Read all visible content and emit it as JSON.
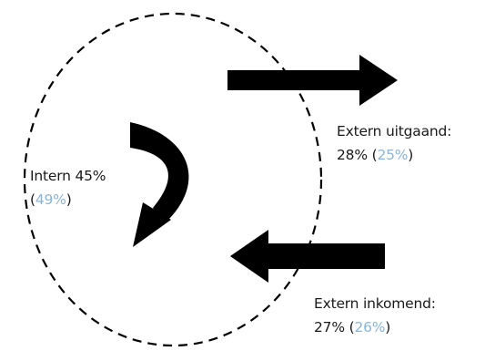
{
  "labels": {
    "intern": {
      "line1": "Intern 45%",
      "open": "(",
      "previous": "49%",
      "close": ")"
    },
    "extern_uitgaand": {
      "line1": "Extern uitgaand:",
      "current": "28% (",
      "previous": "25%",
      "close": ")"
    },
    "extern_inkomend": {
      "line1": "Extern inkomend:",
      "current": "27% (",
      "previous": "26%",
      "close": ")"
    }
  },
  "colors": {
    "arrow": "#000000",
    "boundary": "#000000",
    "previous_value": "#8ab4d8"
  },
  "icons": {
    "internal": "curved-arrow-icon",
    "outgoing": "arrow-right-icon",
    "incoming": "arrow-left-icon"
  }
}
